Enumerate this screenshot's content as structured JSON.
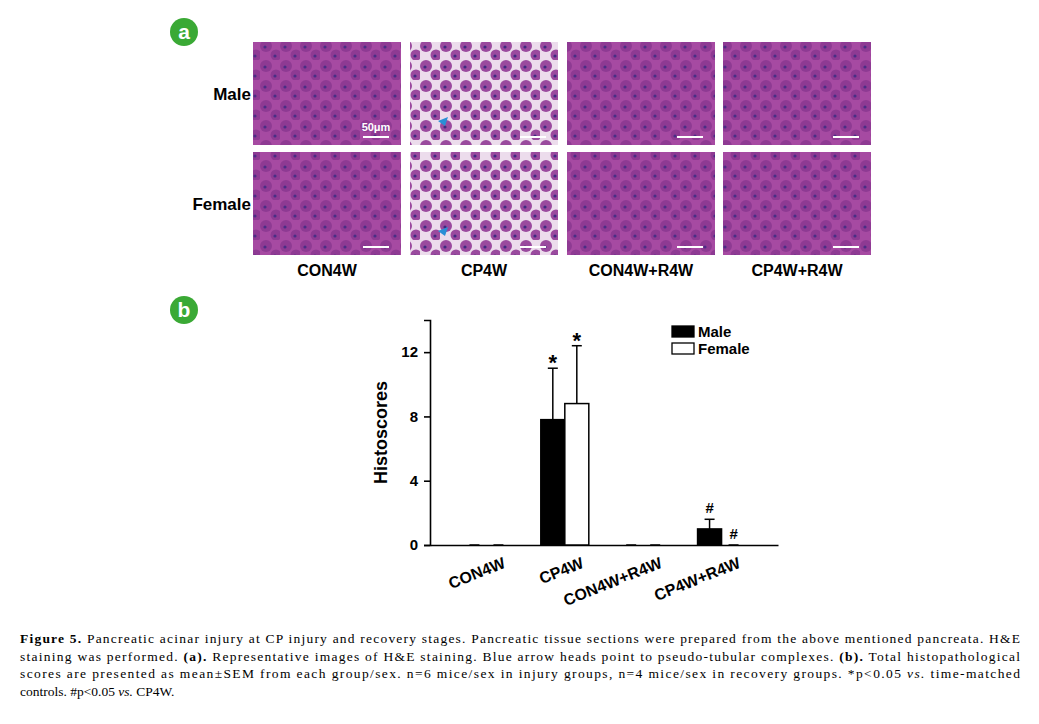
{
  "panel_a": {
    "label": "a",
    "rows": [
      "Male",
      "Female"
    ],
    "columns": [
      "CON4W",
      "CP4W",
      "CON4W+R4W",
      "CP4W+R4W"
    ],
    "scale_bar": "50μm"
  },
  "panel_b": {
    "label": "b"
  },
  "chart_data": {
    "type": "bar",
    "categories": [
      "CON4W",
      "CP4W",
      "CON4W+R4W",
      "CP4W+R4W"
    ],
    "series": [
      {
        "name": "Male",
        "color": "#000000",
        "values": [
          0,
          7.8,
          0,
          1.0
        ],
        "errors": [
          0,
          3.2,
          0,
          0.6
        ]
      },
      {
        "name": "Female",
        "color": "#ffffff",
        "values": [
          0,
          8.8,
          0,
          0
        ],
        "errors": [
          0,
          3.6,
          0,
          0
        ]
      }
    ],
    "ylabel": "Histoscores",
    "ylim": [
      0,
      14
    ],
    "yticks": [
      0,
      4,
      8,
      12
    ],
    "legend": "upper right",
    "grid": false,
    "annotations": [
      {
        "text": "*",
        "category": 1,
        "series": 0
      },
      {
        "text": "*",
        "category": 1,
        "series": 1
      },
      {
        "text": "#",
        "category": 3,
        "series": 0
      },
      {
        "text": "#",
        "category": 3,
        "series": 1
      }
    ]
  },
  "caption": [
    [
      {
        "text": "Figure 5.",
        "bold": true
      },
      {
        "text": " Pancreatic acinar injury at CP injury and recovery stages. Pancreatic tissue sections were prepared from the above mentioned pancreata. H&E"
      }
    ],
    [
      {
        "text": "staining was performed. "
      },
      {
        "text": "(a).",
        "bold": true
      },
      {
        "text": " Representative images of H&E staining. Blue arrow heads point to pseudo-tubular complexes. "
      },
      {
        "text": "(b).",
        "bold": true
      },
      {
        "text": " Total histopathological"
      }
    ],
    [
      {
        "text": "scores are presented as mean±SEM from each group/sex. n=6 mice/sex in injury groups, n=4 mice/sex in recovery groups. *p<0.05 "
      },
      {
        "text": "vs.",
        "italic": true
      },
      {
        "text": " time-matched"
      }
    ],
    [
      {
        "text": "controls. #p<0.05 "
      },
      {
        "text": "vs.",
        "italic": true
      },
      {
        "text": " CP4W."
      }
    ]
  ]
}
